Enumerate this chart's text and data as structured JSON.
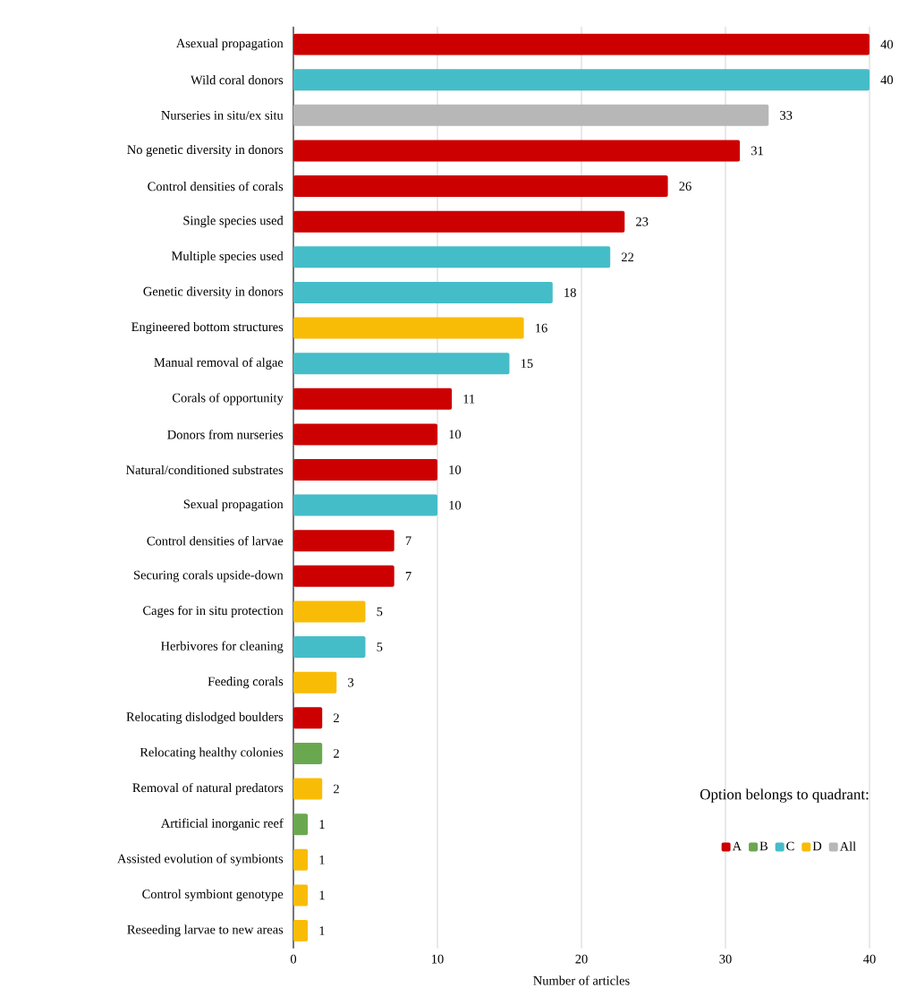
{
  "chart_data": {
    "type": "bar",
    "orientation": "horizontal",
    "categories": [
      "Asexual propagation",
      "Wild coral donors",
      "Nurseries in situ/ex situ",
      "No genetic diversity in donors",
      "Control densities of corals",
      "Single species used",
      "Multiple species used",
      "Genetic diversity in donors",
      "Engineered bottom structures",
      "Manual removal of algae",
      "Corals of opportunity",
      "Donors from nurseries",
      "Natural/conditioned substrates",
      "Sexual propagation",
      "Control densities of larvae",
      "Securing corals upside-down",
      "Cages for in situ protection",
      "Herbivores for cleaning",
      "Feeding corals",
      "Relocating dislodged boulders",
      "Relocating healthy colonies",
      "Removal of natural predators",
      "Artificial inorganic reef",
      "Assisted evolution of symbionts",
      "Control symbiont genotype",
      "Reseeding larvae to new areas"
    ],
    "series": [
      {
        "name": "A",
        "color": "#cc0000",
        "values": [
          40,
          null,
          null,
          31,
          26,
          23,
          null,
          null,
          null,
          null,
          11,
          10,
          10,
          null,
          7,
          7,
          null,
          null,
          null,
          2,
          null,
          null,
          null,
          null,
          null,
          null
        ]
      },
      {
        "name": "B",
        "color": "#6aa84f",
        "values": [
          null,
          null,
          null,
          null,
          null,
          null,
          null,
          null,
          null,
          null,
          null,
          null,
          null,
          null,
          null,
          null,
          null,
          null,
          null,
          null,
          2,
          null,
          1,
          null,
          null,
          null
        ]
      },
      {
        "name": "C",
        "color": "#45bdc8",
        "values": [
          null,
          40,
          null,
          null,
          null,
          null,
          22,
          18,
          null,
          15,
          null,
          null,
          null,
          10,
          null,
          null,
          null,
          5,
          null,
          null,
          null,
          null,
          null,
          null,
          null,
          null
        ]
      },
      {
        "name": "D",
        "color": "#f9bc06",
        "values": [
          null,
          null,
          null,
          null,
          null,
          null,
          null,
          null,
          16,
          null,
          null,
          null,
          null,
          null,
          null,
          null,
          5,
          null,
          3,
          null,
          null,
          2,
          null,
          1,
          1,
          1
        ]
      },
      {
        "name": "All",
        "color": "#b7b7b7",
        "values": [
          null,
          null,
          33,
          null,
          null,
          null,
          null,
          null,
          null,
          null,
          null,
          null,
          null,
          null,
          null,
          null,
          null,
          null,
          null,
          null,
          null,
          null,
          null,
          null,
          null,
          null
        ]
      }
    ],
    "xlabel": "Number of articles",
    "xlim": [
      0,
      40
    ],
    "xticks": [
      0,
      10,
      20,
      30,
      40
    ],
    "grid": "x",
    "data_labels": true,
    "legend": "bottom right",
    "legend_title": "Option belongs to quadrant:"
  }
}
